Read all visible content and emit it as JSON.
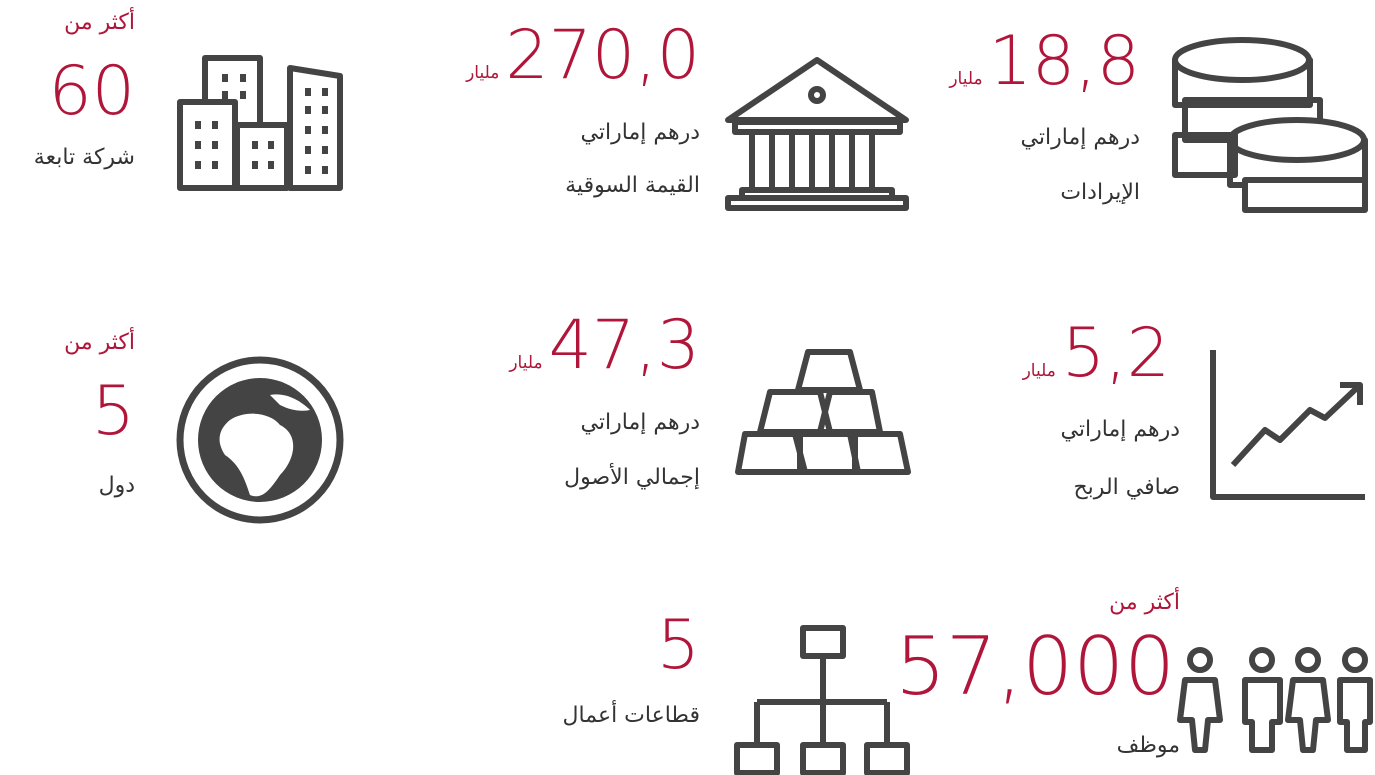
{
  "stats": [
    {
      "value": "18,8",
      "unit": "مليار",
      "currency": "درهم إماراتي",
      "label": "الإيرادات"
    },
    {
      "value": "270,0",
      "unit": "مليار",
      "currency": "درهم إماراتي",
      "label": "القيمة السوقية"
    },
    {
      "prefix": "أكثر من",
      "value": "60",
      "label": "شركة تابعة"
    },
    {
      "value": "5,2",
      "unit": "مليار",
      "currency": "درهم إماراتي",
      "label": "صافي الربح"
    },
    {
      "value": "47,3",
      "unit": "مليار",
      "currency": "درهم إماراتي",
      "label": "إجمالي الأصول"
    },
    {
      "prefix": "أكثر من",
      "value": "5",
      "label": "دول"
    },
    {
      "prefix": "أكثر من",
      "value": "57,000",
      "label": "موظف"
    },
    {
      "value": "5",
      "label": "قطاعات أعمال"
    }
  ]
}
